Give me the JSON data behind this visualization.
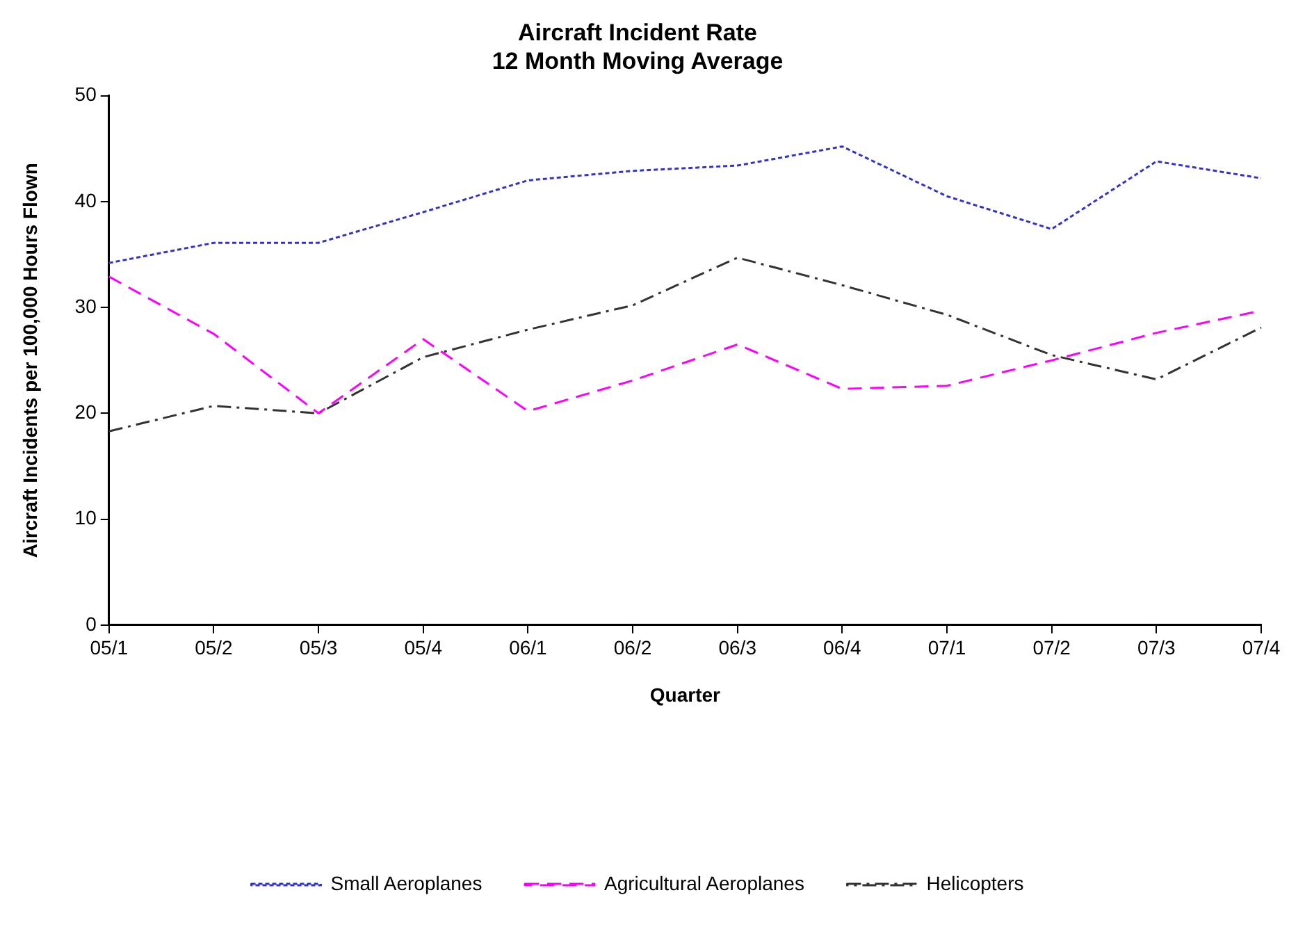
{
  "chart_data": {
    "type": "line",
    "title": "Aircraft Incident Rate",
    "subtitle": "12 Month Moving Average",
    "xlabel": "Quarter",
    "ylabel": "Aircraft Incidents per 100,000 Hours Flown",
    "categories": [
      "05/1",
      "05/2",
      "05/3",
      "05/4",
      "06/1",
      "06/2",
      "06/3",
      "06/4",
      "07/1",
      "07/2",
      "07/3",
      "07/4"
    ],
    "series": [
      {
        "name": "Small Aeroplanes",
        "color": "#3333cc",
        "line_style": "dotted",
        "values": [
          34.2,
          36.1,
          36.1,
          39,
          42,
          42.9,
          43.4,
          45.2,
          40.5,
          37.4,
          43.8,
          42.2
        ]
      },
      {
        "name": "Agricultural Aeroplanes",
        "color": "#ff00ff",
        "line_style": "dashed",
        "values": [
          32.9,
          27.5,
          20,
          27,
          20.2,
          23.1,
          26.5,
          22.3,
          22.6,
          25,
          27.6,
          29.7
        ]
      },
      {
        "name": "Helicopters",
        "color": "#333333",
        "line_style": "dashdot",
        "values": [
          18.3,
          20.7,
          20,
          25.3,
          27.9,
          30.2,
          34.7,
          32.1,
          29.3,
          25.5,
          23.2,
          28.1
        ]
      }
    ],
    "ylim": [
      0,
      50
    ],
    "yticks": [
      0,
      10,
      20,
      30,
      40,
      50
    ],
    "grid": false,
    "legend": "bottom",
    "marker": "none"
  }
}
